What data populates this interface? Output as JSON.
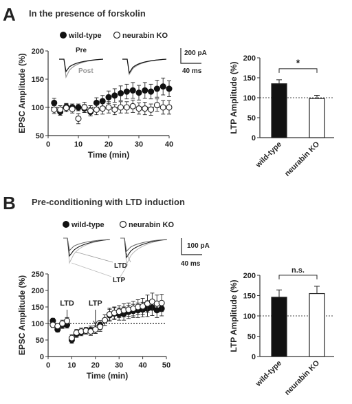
{
  "panels": [
    {
      "letter": "A",
      "heading": "In the presence of forskolin"
    },
    {
      "letter": "B",
      "heading": "Pre-conditioning with LTD induction"
    }
  ],
  "legend": {
    "wt": "wild-type",
    "ko": "neurabin KO"
  },
  "traces": {
    "a_pre": "Pre",
    "a_post": "Post",
    "a_scale_y": "200 pA",
    "a_scale_x": "40 ms",
    "b_ltd": "LTD",
    "b_ltp": "LTP",
    "b_scale_y": "100 pA",
    "b_scale_x": "40 ms"
  },
  "colors": {
    "wt": "#111111",
    "ko": "#ffffff",
    "axis": "#333333",
    "ref": "#444444"
  },
  "chart_data": [
    {
      "type": "scatter",
      "panel": "A",
      "xlabel": "Time (min)",
      "ylabel": "EPSC Amplitude (%)",
      "xlim": [
        0,
        40
      ],
      "ylim": [
        50,
        200
      ],
      "xticks": [
        0,
        10,
        20,
        30,
        40
      ],
      "yticks": [
        50,
        100,
        150,
        200
      ],
      "reference_line": 100,
      "annotations": [],
      "series": [
        {
          "name": "wild-type",
          "x": [
            2,
            4,
            6,
            8,
            10,
            12,
            14,
            16,
            18,
            20,
            22,
            24,
            26,
            28,
            30,
            32,
            34,
            36,
            38,
            40
          ],
          "y": [
            108,
            92,
            101,
            100,
            100,
            98,
            92,
            108,
            111,
            118,
            121,
            125,
            128,
            130,
            126,
            130,
            128,
            133,
            137,
            133
          ],
          "err": [
            8,
            6,
            6,
            6,
            6,
            7,
            7,
            9,
            10,
            11,
            12,
            13,
            13,
            14,
            13,
            14,
            13,
            15,
            15,
            14
          ]
        },
        {
          "name": "neurabin KO",
          "x": [
            2,
            4,
            6,
            8,
            10,
            12,
            14,
            16,
            18,
            20,
            22,
            24,
            26,
            28,
            30,
            32,
            34,
            36,
            38,
            40
          ],
          "y": [
            96,
            96,
            99,
            97,
            80,
            100,
            94,
            96,
            98,
            100,
            96,
            100,
            100,
            102,
            98,
            98,
            96,
            104,
            100,
            100
          ],
          "err": [
            7,
            7,
            7,
            7,
            9,
            9,
            9,
            9,
            10,
            10,
            9,
            10,
            10,
            11,
            10,
            11,
            10,
            11,
            12,
            12
          ]
        }
      ]
    },
    {
      "type": "bar",
      "panel": "A",
      "categories": [
        "wild-type",
        "neurabin KO"
      ],
      "values": [
        135,
        98
      ],
      "err": [
        10,
        8
      ],
      "ylabel": "LTP Amplitude (%)",
      "ylim": [
        0,
        200
      ],
      "yticks": [
        0,
        50,
        100,
        150,
        200
      ],
      "reference_line": 100,
      "significance": "*"
    },
    {
      "type": "scatter",
      "panel": "B",
      "xlabel": "Time (min)",
      "ylabel": "EPSC Amplitude (%)",
      "xlim": [
        0,
        50
      ],
      "ylim": [
        0,
        250
      ],
      "xticks": [
        0,
        10,
        20,
        30,
        40,
        50
      ],
      "yticks": [
        0,
        50,
        100,
        150,
        200,
        250
      ],
      "reference_line": 100,
      "annotations": [
        {
          "label": "LTD",
          "x": 8
        },
        {
          "label": "LTP",
          "x": 20
        }
      ],
      "series": [
        {
          "name": "wild-type",
          "x": [
            2,
            4,
            6,
            8,
            10,
            12,
            14,
            16,
            18,
            20,
            22,
            24,
            26,
            28,
            30,
            32,
            34,
            36,
            38,
            40,
            42,
            44,
            46,
            48
          ],
          "y": [
            108,
            82,
            95,
            96,
            50,
            68,
            73,
            78,
            80,
            82,
            95,
            110,
            125,
            130,
            128,
            130,
            135,
            138,
            140,
            142,
            145,
            148,
            140,
            145
          ],
          "err": [
            8,
            8,
            10,
            10,
            10,
            10,
            10,
            10,
            12,
            12,
            14,
            16,
            18,
            18,
            18,
            20,
            20,
            20,
            22,
            22,
            24,
            24,
            22,
            22
          ]
        },
        {
          "name": "neurabin KO",
          "x": [
            2,
            4,
            6,
            8,
            10,
            12,
            14,
            16,
            18,
            20,
            22,
            24,
            26,
            28,
            30,
            32,
            34,
            36,
            38,
            40,
            42,
            44,
            46,
            48
          ],
          "y": [
            96,
            92,
            100,
            108,
            56,
            72,
            76,
            78,
            76,
            82,
            90,
            110,
            128,
            132,
            136,
            140,
            142,
            145,
            150,
            152,
            160,
            166,
            160,
            162
          ],
          "err": [
            8,
            8,
            10,
            10,
            10,
            10,
            10,
            10,
            12,
            12,
            14,
            16,
            18,
            18,
            18,
            20,
            20,
            22,
            22,
            24,
            26,
            26,
            26,
            26
          ]
        }
      ]
    },
    {
      "type": "bar",
      "panel": "B",
      "categories": [
        "wild-type",
        "neurabin KO"
      ],
      "values": [
        146,
        155
      ],
      "err": [
        18,
        18
      ],
      "ylabel": "LTP Amplitude (%)",
      "ylim": [
        0,
        200
      ],
      "yticks": [
        0,
        50,
        100,
        150,
        200
      ],
      "reference_line": 100,
      "significance": "n.s."
    }
  ]
}
